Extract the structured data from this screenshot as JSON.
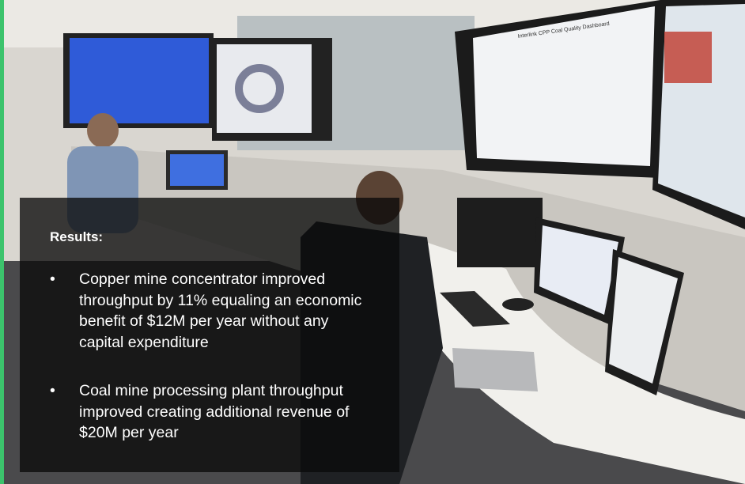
{
  "screen_title": "Interlink CPP Coal Quality Dashboard",
  "overlay": {
    "title": "Results:",
    "bullets": [
      "Copper mine concentrator improved throughput by 11% equaling an economic benefit of $12M per year without any capital expenditure",
      "Coal mine processing plant throughput improved creating additional revenue of $20M per year"
    ]
  }
}
